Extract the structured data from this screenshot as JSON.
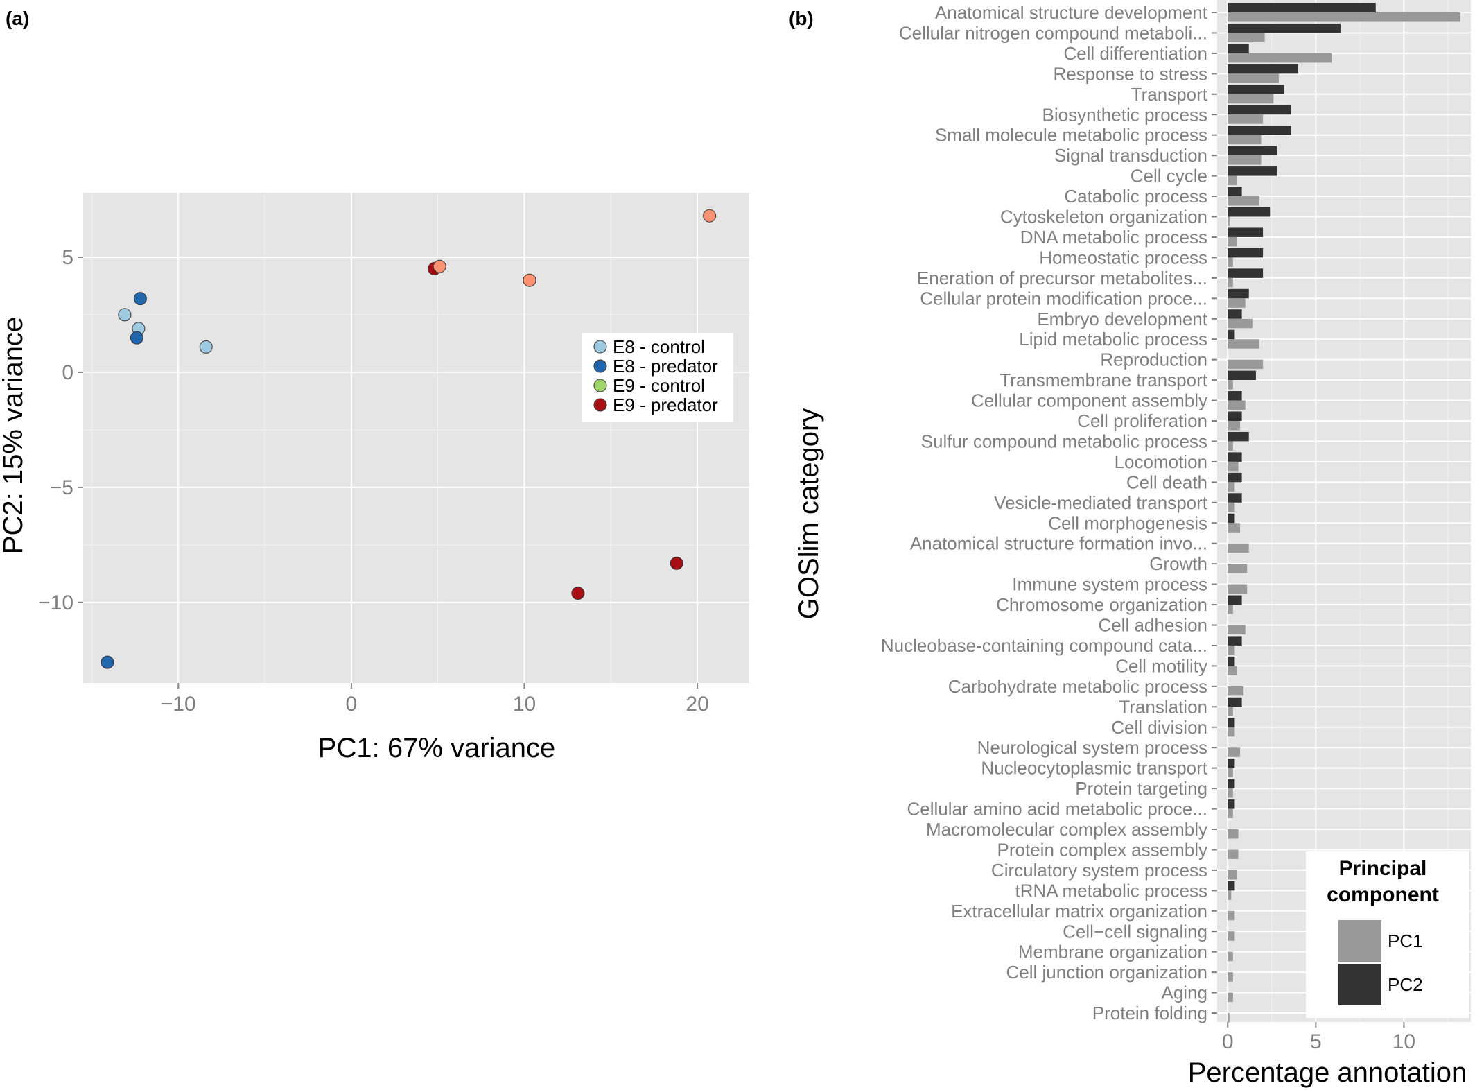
{
  "chart_data": [
    {
      "type": "scatter",
      "panel_label": "(a)",
      "xlabel": "PC1: 67% variance",
      "ylabel": "PC2: 15% variance",
      "xlim": [
        -15.5,
        23
      ],
      "ylim": [
        -13.5,
        7.8
      ],
      "x_ticks": [
        -10,
        0,
        10,
        20
      ],
      "y_ticks": [
        5,
        0,
        -5,
        -10
      ],
      "x_tick_labels": [
        "−10",
        "0",
        "10",
        "20"
      ],
      "y_tick_labels": [
        "5",
        "0",
        "−5",
        "−10"
      ],
      "grid": true,
      "legend_position": "right",
      "series": [
        {
          "name": "E8 - control",
          "color": "#9ecae1",
          "points": [
            [
              -13.1,
              2.5
            ],
            [
              -12.3,
              1.9
            ],
            [
              -8.4,
              1.1
            ]
          ]
        },
        {
          "name": "E8 - predator",
          "color": "#2166ac",
          "points": [
            [
              -12.2,
              3.2
            ],
            [
              -12.4,
              1.5
            ],
            [
              -14.1,
              -12.6
            ]
          ]
        },
        {
          "name": "E9 - control",
          "color": "#a1d76a",
          "points": []
        },
        {
          "name": "E9 - predator",
          "color": "#a50f15",
          "points": [
            [
              4.8,
              4.5
            ],
            [
              13.1,
              -9.6
            ],
            [
              18.8,
              -8.3
            ]
          ]
        },
        {
          "name": "",
          "color": "#fc9272",
          "points": [
            [
              5.1,
              4.6
            ],
            [
              10.3,
              4.0
            ],
            [
              20.7,
              6.8
            ]
          ]
        }
      ]
    },
    {
      "type": "bar",
      "orientation": "horizontal",
      "panel_label": "(b)",
      "xlabel": "Percentage annotation",
      "ylabel": "GOSlim category",
      "xlim": [
        -0.6,
        13.8
      ],
      "x_ticks": [
        0,
        5,
        10
      ],
      "x_tick_labels": [
        "0",
        "5",
        "10"
      ],
      "legend_title": [
        "Principal",
        "component"
      ],
      "legend_position": "bottom-right",
      "categories": [
        "Anatomical structure development",
        "Cellular nitrogen compound metaboli...",
        "Cell differentiation",
        "Response to stress",
        "Transport",
        "Biosynthetic process",
        "Small molecule metabolic process",
        "Signal transduction",
        "Cell cycle",
        "Catabolic process",
        "Cytoskeleton organization",
        "DNA metabolic process",
        "Homeostatic process",
        "Eneration of precursor metabolites...",
        "Cellular protein modification proce...",
        "Embryo development",
        "Lipid metabolic process",
        "Reproduction",
        "Transmembrane transport",
        "Cellular component assembly",
        "Cell proliferation",
        "Sulfur compound metabolic process",
        "Locomotion",
        "Cell death",
        "Vesicle-mediated transport",
        "Cell morphogenesis",
        "Anatomical structure formation invo...",
        "Growth",
        "Immune system process",
        "Chromosome organization",
        "Cell adhesion",
        "Nucleobase-containing compound cata...",
        "Cell motility",
        "Carbohydrate metabolic process",
        "Translation",
        "Cell division",
        "Neurological system process",
        "Nucleocytoplasmic transport",
        "Protein targeting",
        "Cellular amino acid metabolic proce...",
        "Macromolecular complex assembly",
        "Protein complex assembly",
        "Circulatory system process",
        "tRNA metabolic process",
        "Extracellular matrix organization",
        "Cell−cell signaling",
        "Membrane organization",
        "Cell junction organization",
        "Aging",
        "Protein folding"
      ],
      "series": [
        {
          "name": "PC1",
          "color": "#999999",
          "values": [
            13.2,
            2.1,
            5.9,
            2.9,
            2.6,
            2.0,
            1.9,
            1.9,
            0.5,
            1.8,
            0.1,
            0.5,
            0.3,
            0.3,
            1.0,
            1.4,
            1.8,
            2.0,
            0.3,
            1.0,
            0.7,
            0.3,
            0.6,
            0.4,
            0.4,
            0.7,
            1.2,
            1.1,
            1.1,
            0.3,
            1.0,
            0.4,
            0.5,
            0.9,
            0.3,
            0.4,
            0.7,
            0.3,
            0.3,
            0.3,
            0.6,
            0.6,
            0.5,
            0.2,
            0.4,
            0.4,
            0.3,
            0.3,
            0.3,
            0.1
          ]
        },
        {
          "name": "PC2",
          "color": "#333333",
          "values": [
            8.4,
            6.4,
            1.2,
            4.0,
            3.2,
            3.6,
            3.6,
            2.8,
            2.8,
            0.8,
            2.4,
            2.0,
            2.0,
            2.0,
            1.2,
            0.8,
            0.4,
            0.0,
            1.6,
            0.8,
            0.8,
            1.2,
            0.8,
            0.8,
            0.8,
            0.4,
            0.0,
            0.0,
            0.0,
            0.8,
            0.0,
            0.8,
            0.4,
            0.0,
            0.8,
            0.4,
            0.0,
            0.4,
            0.4,
            0.4,
            0.0,
            0.0,
            0.0,
            0.4,
            0.0,
            0.0,
            0.0,
            0.0,
            0.0,
            0.0
          ]
        }
      ]
    }
  ]
}
